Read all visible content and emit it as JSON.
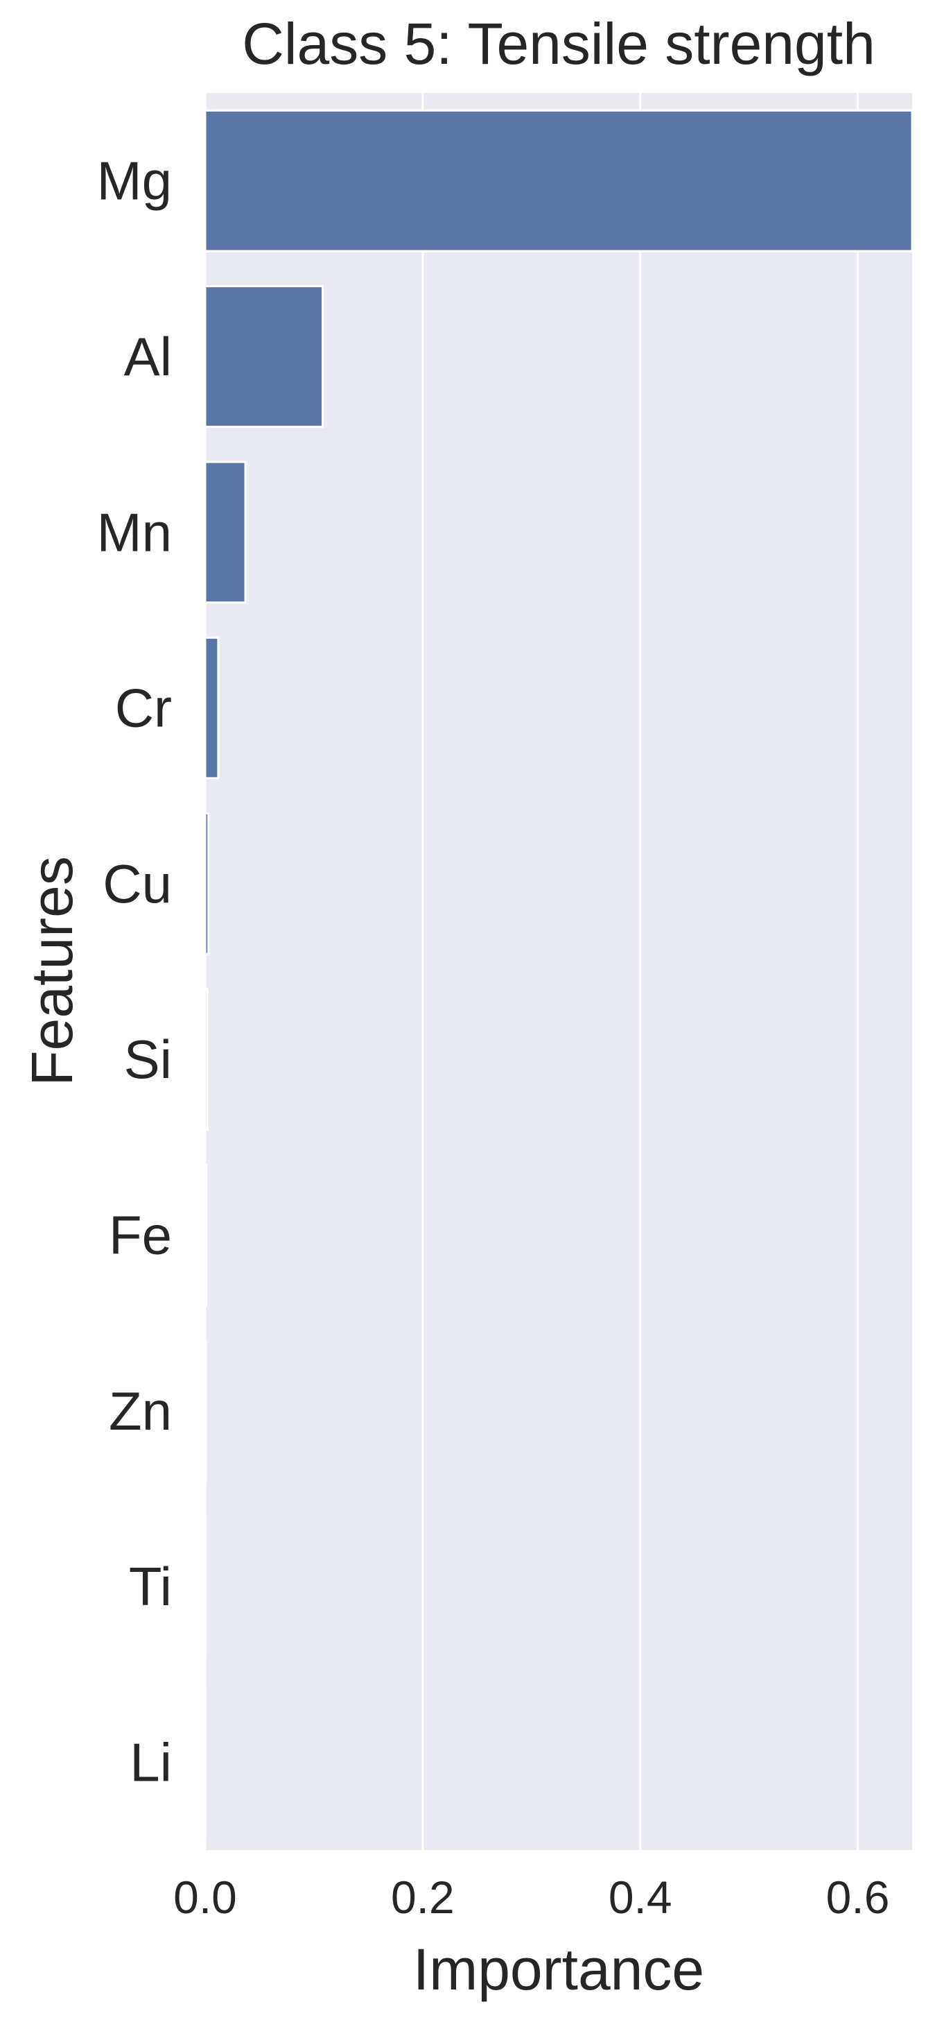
{
  "chart_data": {
    "type": "bar",
    "orientation": "horizontal",
    "title": "Class 5: Tensile strength",
    "xlabel": "Importance",
    "ylabel": "Features",
    "categories": [
      "Mg",
      "Al",
      "Mn",
      "Cr",
      "Cu",
      "Si",
      "Fe",
      "Zn",
      "Ti",
      "Li"
    ],
    "values": [
      0.65,
      0.108,
      0.037,
      0.012,
      0.003,
      0.002,
      0.001,
      0.0007,
      0.0003,
      0.0001
    ],
    "xlim": [
      0,
      0.65
    ],
    "xticks": [
      0.0,
      0.2,
      0.4,
      0.6
    ],
    "xtick_labels": [
      "0.0",
      "0.2",
      "0.4",
      "0.6"
    ],
    "grid": true,
    "colors": {
      "bar": "#5a76a6",
      "background": "#eaeaf2",
      "grid": "#ffffff",
      "text": "#262626"
    }
  }
}
